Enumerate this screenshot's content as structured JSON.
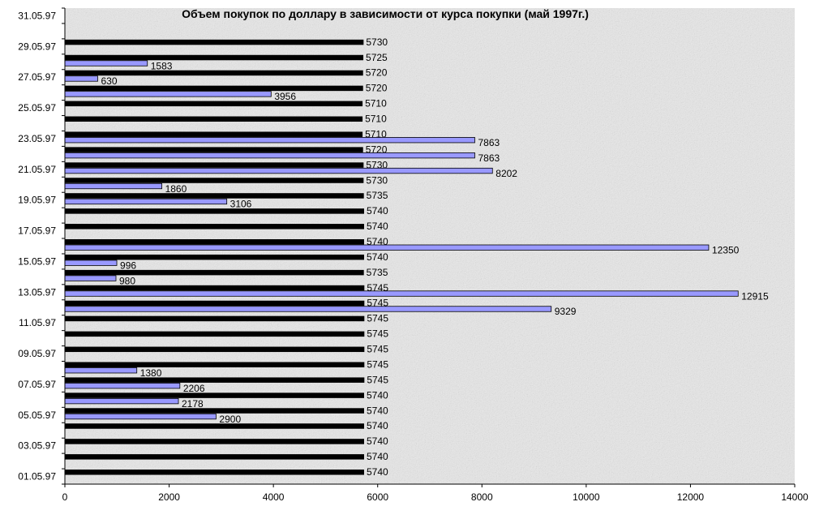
{
  "chart_data": {
    "type": "bar",
    "orientation": "horizontal",
    "title": "Объем покупок по доллару в зависимости от курса покупки (май 1997г.)",
    "xlim": [
      0,
      14000
    ],
    "x_ticks": [
      "0",
      "2000",
      "4000",
      "6000",
      "8000",
      "10000",
      "12000",
      "14000"
    ],
    "categories": [
      "01.05.97",
      "02.05.97",
      "03.05.97",
      "04.05.97",
      "05.05.97",
      "06.05.97",
      "07.05.97",
      "08.05.97",
      "09.05.97",
      "10.05.97",
      "11.05.97",
      "12.05.97",
      "13.05.97",
      "14.05.97",
      "15.05.97",
      "16.05.97",
      "17.05.97",
      "18.05.97",
      "19.05.97",
      "20.05.97",
      "21.05.97",
      "22.05.97",
      "23.05.97",
      "24.05.97",
      "25.05.97",
      "26.05.97",
      "27.05.97",
      "28.05.97",
      "29.05.97",
      "30.05.97",
      "31.05.97"
    ],
    "category_tick_labels": [
      "01.05.97",
      "03.05.97",
      "05.05.97",
      "07.05.97",
      "09.05.97",
      "11.05.97",
      "13.05.97",
      "15.05.97",
      "17.05.97",
      "19.05.97",
      "21.05.97",
      "23.05.97",
      "25.05.97",
      "27.05.97",
      "29.05.97",
      "31.05.97"
    ],
    "series": [
      {
        "role": "rate",
        "color": "#000000",
        "values": [
          5740,
          5740,
          5740,
          5740,
          5740,
          5740,
          5745,
          5745,
          5745,
          5745,
          5745,
          5745,
          5745,
          5735,
          5740,
          5740,
          5740,
          5740,
          5735,
          5730,
          5730,
          5720,
          5710,
          5710,
          5710,
          5720,
          5720,
          5725,
          5730,
          null,
          null
        ]
      },
      {
        "role": "volume",
        "color": "#9999ff",
        "values": [
          null,
          null,
          null,
          null,
          2900,
          2178,
          2206,
          1380,
          null,
          null,
          null,
          9329,
          12915,
          980,
          996,
          12350,
          null,
          null,
          3106,
          1860,
          8202,
          7863,
          7863,
          null,
          null,
          3956,
          630,
          1583,
          null,
          null,
          null
        ]
      }
    ],
    "grid": false,
    "legend": "none",
    "plot_background": "#e9e9e9"
  }
}
